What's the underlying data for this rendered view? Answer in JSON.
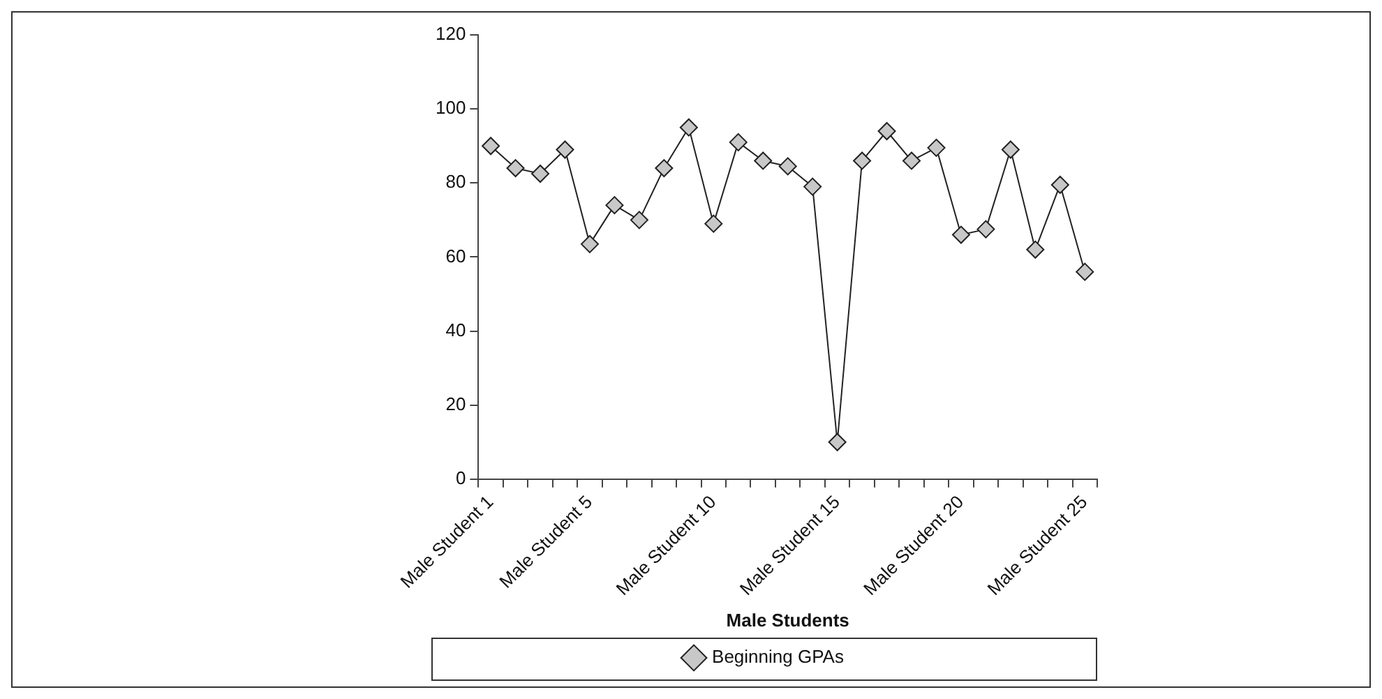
{
  "chart_data": {
    "type": "line",
    "xlabel": "Male Students",
    "categories": [
      "Male Student 1",
      null,
      null,
      null,
      "Male Student 5",
      null,
      null,
      null,
      null,
      "Male Student 10",
      null,
      null,
      null,
      null,
      "Male Student 15",
      null,
      null,
      null,
      null,
      "Male Student 20",
      null,
      null,
      null,
      null,
      "Male Student 25"
    ],
    "series": [
      {
        "name": "Beginning GPAs",
        "color": "#c8c8c8",
        "values": [
          90,
          84,
          82.5,
          89,
          63.5,
          74,
          70,
          84,
          95,
          69,
          91,
          86,
          84.5,
          79,
          10,
          86,
          94,
          86,
          89.5,
          66,
          67.5,
          89,
          62,
          79.5,
          56
        ]
      }
    ],
    "ylim": [
      0,
      120
    ],
    "yticks": [
      0,
      20,
      40,
      60,
      80,
      100,
      120
    ],
    "grid": false,
    "legend": "bottom",
    "marker": "diamond",
    "line_style": "solid"
  }
}
